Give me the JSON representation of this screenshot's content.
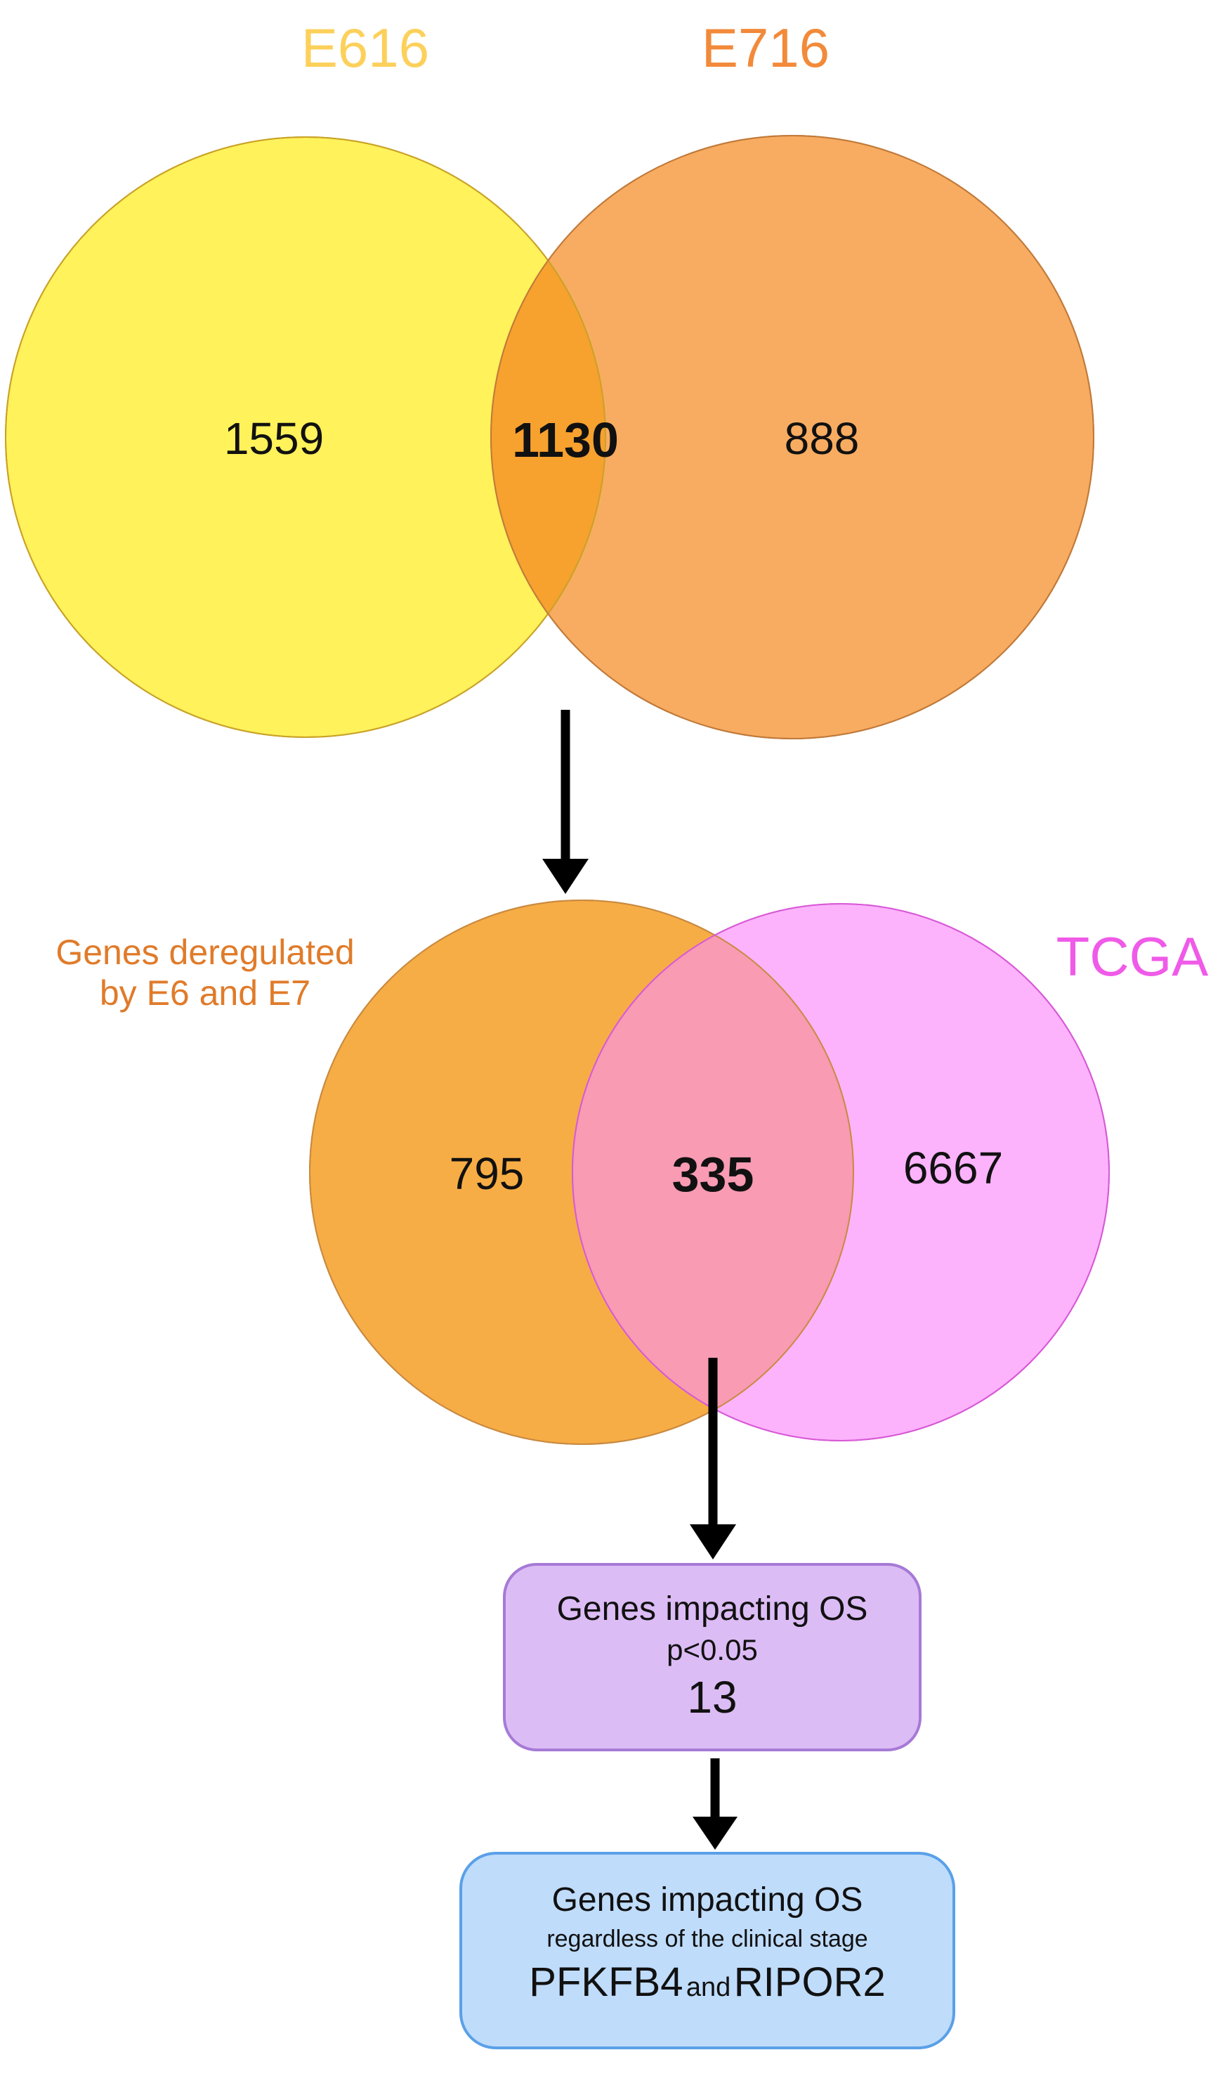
{
  "colors": {
    "e616_fill": "#fff25a",
    "e616_stroke": "#c9a227",
    "e716_fill": "#f79a3e",
    "e716_stroke": "#c07a3a",
    "overlap1_fill": "#f7a12f",
    "e616_title": "#fcd05b",
    "e716_title": "#f28a3a",
    "genes_dereg_fill": "#f7ad45",
    "genes_dereg_stroke": "#c98a40",
    "tcga_fill": "#fca6fb",
    "tcga_stroke": "#d85ad6",
    "overlap2_fill": "#f89bb3",
    "dereg_title": "#e07b2a",
    "tcga_title": "#f05ae8",
    "os_box_fill": "#dcbcf5",
    "os_box_stroke": "#a67ad6",
    "stage_box_fill": "#bfdcfb",
    "stage_box_stroke": "#5aa0e8",
    "arrow": "#000000"
  },
  "venn1": {
    "set_a": {
      "label": "E616",
      "only": "1559"
    },
    "set_b": {
      "label": "E716",
      "only": "888"
    },
    "intersection": "1130"
  },
  "venn2": {
    "set_a": {
      "label_line1": "Genes deregulated",
      "label_line2": "by E6 and E7",
      "only": "795"
    },
    "set_b": {
      "label": "TCGA",
      "only": "6667"
    },
    "intersection": "335"
  },
  "box_os": {
    "line1": "Genes impacting OS",
    "line2": "p<0.05",
    "count": "13"
  },
  "box_stage": {
    "line1": "Genes impacting OS",
    "line2": "regardless of the clinical stage",
    "gene1": "PFKFB4",
    "conj": "and",
    "gene2": "RIPOR2"
  }
}
